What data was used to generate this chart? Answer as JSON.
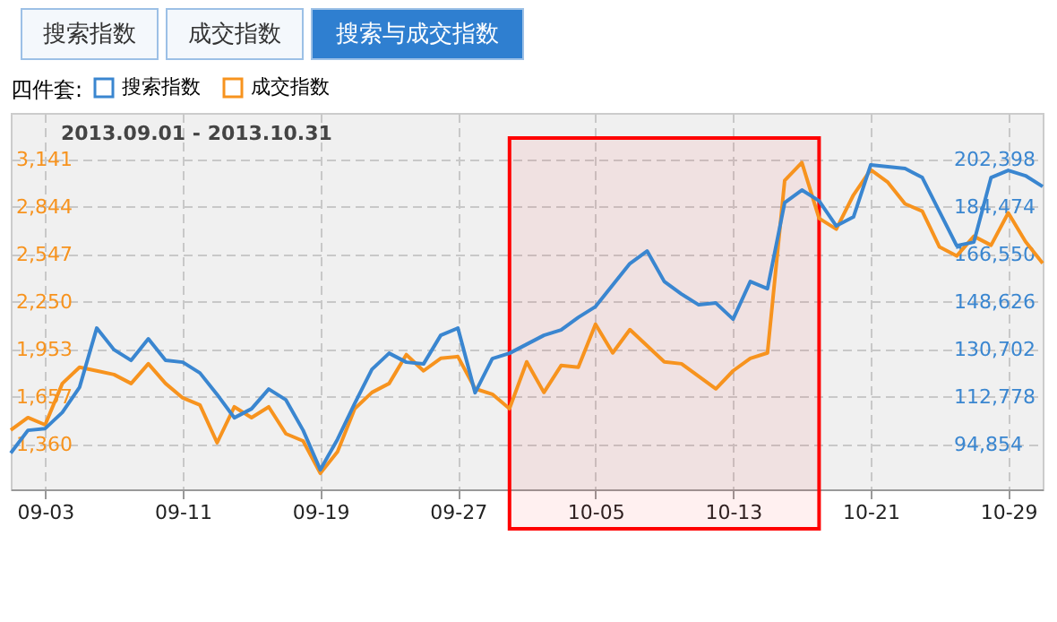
{
  "chart_data": {
    "type": "line",
    "title": "2013.09.01 - 2013.10.31",
    "legend_title": "四件套:",
    "legend": "top left",
    "grid": true,
    "marker": "none",
    "line_style": "solid",
    "annotations": [
      "搜索指数",
      "成交指数",
      "搜索与成交指数"
    ],
    "x": [
      "2013-09-01",
      "2013-09-02",
      "2013-09-03",
      "2013-09-04",
      "2013-09-05",
      "2013-09-06",
      "2013-09-07",
      "2013-09-08",
      "2013-09-09",
      "2013-09-10",
      "2013-09-11",
      "2013-09-12",
      "2013-09-13",
      "2013-09-14",
      "2013-09-15",
      "2013-09-16",
      "2013-09-17",
      "2013-09-18",
      "2013-09-19",
      "2013-09-20",
      "2013-09-21",
      "2013-09-22",
      "2013-09-23",
      "2013-09-24",
      "2013-09-25",
      "2013-09-26",
      "2013-09-27",
      "2013-09-28",
      "2013-09-29",
      "2013-09-30",
      "2013-10-01",
      "2013-10-02",
      "2013-10-03",
      "2013-10-04",
      "2013-10-05",
      "2013-10-06",
      "2013-10-07",
      "2013-10-08",
      "2013-10-09",
      "2013-10-10",
      "2013-10-11",
      "2013-10-12",
      "2013-10-13",
      "2013-10-14",
      "2013-10-15",
      "2013-10-16",
      "2013-10-17",
      "2013-10-18",
      "2013-10-19",
      "2013-10-20",
      "2013-10-21",
      "2013-10-22",
      "2013-10-23",
      "2013-10-24",
      "2013-10-25",
      "2013-10-26",
      "2013-10-27",
      "2013-10-28",
      "2013-10-29",
      "2013-10-30",
      "2013-10-31"
    ],
    "series": [
      {
        "name": "搜索指数",
        "color": "#3a86d0",
        "axis": "y2",
        "values": [
          91670,
          100270,
          100940,
          107030,
          116500,
          138820,
          130700,
          126650,
          134760,
          126650,
          125970,
          121910,
          113790,
          105000,
          108380,
          115820,
          111760,
          100270,
          85380,
          96880,
          110410,
          123260,
          129350,
          125970,
          125300,
          136110,
          138820,
          114470,
          127320,
          129350,
          132730,
          136110,
          138140,
          142880,
          146940,
          155050,
          163170,
          167900,
          156400,
          151670,
          147610,
          148290,
          142200,
          156400,
          153700,
          186160,
          190900,
          186840,
          177370,
          180750,
          200370,
          199690,
          199020,
          195630,
          182780,
          169930,
          171280,
          195630,
          198340,
          196310,
          192250
        ]
      },
      {
        "name": "成交指数",
        "color": "#f7931e",
        "values": [
          1450,
          1528,
          1483,
          1741,
          1842,
          1820,
          1797,
          1741,
          1864,
          1741,
          1651,
          1607,
          1371,
          1595,
          1528,
          1595,
          1427,
          1382,
          1180,
          1315,
          1584,
          1685,
          1741,
          1921,
          1820,
          1898,
          1909,
          1708,
          1674,
          1584,
          1876,
          1685,
          1853,
          1842,
          2111,
          1932,
          2077,
          1977,
          1876,
          1864,
          1786,
          1708,
          1820,
          1898,
          1932,
          3008,
          3120,
          2772,
          2705,
          2918,
          3075,
          2997,
          2862,
          2817,
          2593,
          2537,
          2660,
          2604,
          2806,
          2627,
          2492
        ]
      }
    ],
    "xlim": [
      "2013-09-01",
      "2013-10-31"
    ],
    "xticks": [
      {
        "value": "2013-09-03",
        "label": "09-03"
      },
      {
        "value": "2013-09-11",
        "label": "09-11"
      },
      {
        "value": "2013-09-19",
        "label": "09-19"
      },
      {
        "value": "2013-09-27",
        "label": "09-27"
      },
      {
        "value": "2013-10-05",
        "label": "10-05"
      },
      {
        "value": "2013-10-13",
        "label": "10-13"
      },
      {
        "value": "2013-10-21",
        "label": "10-21"
      },
      {
        "value": "2013-10-29",
        "label": "10-29"
      }
    ],
    "ylim": [
      1080,
      3430
    ],
    "yticks": [
      {
        "value": 1360,
        "label": "1,360"
      },
      {
        "value": 1657,
        "label": "1,657"
      },
      {
        "value": 1953,
        "label": "1,953"
      },
      {
        "value": 2250,
        "label": "2,250"
      },
      {
        "value": 2547,
        "label": "2,547"
      },
      {
        "value": 2844,
        "label": "2,844"
      },
      {
        "value": 3141,
        "label": "3,141"
      }
    ],
    "y2lim": [
      78000,
      220000
    ],
    "y2ticks": [
      {
        "value": 94854,
        "label": "94,854"
      },
      {
        "value": 112778,
        "label": "112,778"
      },
      {
        "value": 130702,
        "label": "130,702"
      },
      {
        "value": 148626,
        "label": "148,626"
      },
      {
        "value": 166550,
        "label": "166,550"
      },
      {
        "value": 184474,
        "label": "184,474"
      },
      {
        "value": 202398,
        "label": "202,398"
      }
    ],
    "bands": [
      {
        "axis": "x",
        "from": "2013-09-30",
        "to": "2013-10-18",
        "color": "#ff0000"
      }
    ]
  }
}
